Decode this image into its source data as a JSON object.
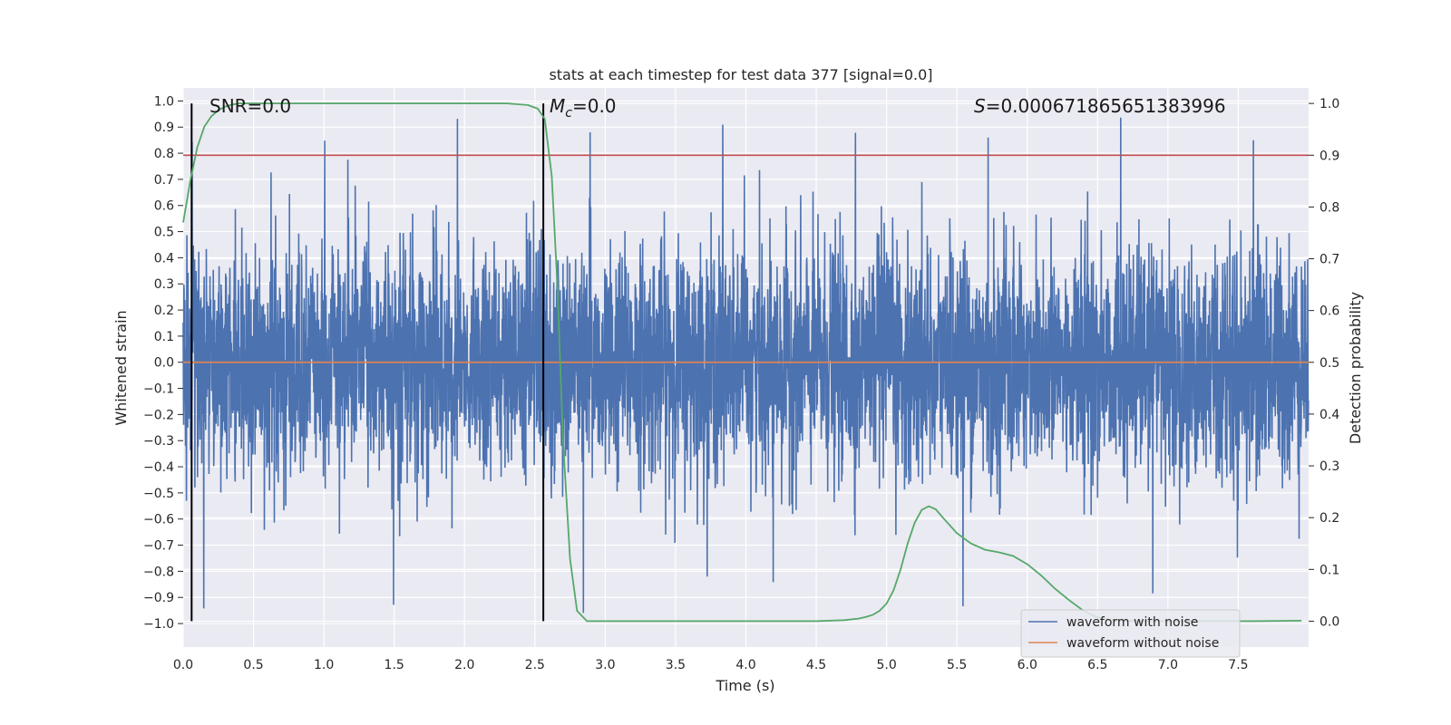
{
  "chart_data": {
    "type": "line",
    "title": "stats at each timestep for test data 377 [signal=0.0]",
    "xlabel": "Time (s)",
    "ylabel_left": "Whitened strain",
    "ylabel_right": "Detection probability",
    "xlim": [
      0.0,
      8.0
    ],
    "ylim_left": [
      -1.09,
      1.05
    ],
    "ylim_right": [
      -0.05,
      1.03
    ],
    "x_ticks": [
      "0.0",
      "0.5",
      "1.0",
      "1.5",
      "2.0",
      "2.5",
      "3.0",
      "3.5",
      "4.0",
      "4.5",
      "5.0",
      "5.5",
      "6.0",
      "6.5",
      "7.0",
      "7.5"
    ],
    "y_left_ticks": [
      "1.0",
      "0.9",
      "0.8",
      "0.7",
      "0.6",
      "0.5",
      "0.4",
      "0.3",
      "0.2",
      "0.1",
      "0.0",
      "−0.1",
      "−0.2",
      "−0.3",
      "−0.4",
      "−0.5",
      "−0.6",
      "−0.7",
      "−0.8",
      "−0.9",
      "−1.0"
    ],
    "y_right_ticks": [
      "1.0",
      "0.9",
      "0.8",
      "0.7",
      "0.6",
      "0.5",
      "0.4",
      "0.3",
      "0.2",
      "0.1",
      "0.0"
    ],
    "grid": true,
    "legend_position": "bottom-right",
    "annotations": {
      "snr": "SNR=0.0",
      "mc_symbol": "M",
      "mc_sub": "c",
      "mc_value": "=0.0",
      "s_symbol": "S",
      "s_value": "=0.000671865651383996"
    },
    "vertical_markers_s": [
      0.06,
      2.56
    ],
    "threshold_probability": 0.9,
    "series": [
      {
        "name": "waveform with noise",
        "color": "#4c72b0",
        "axis": "left",
        "description": "noisy whitened strain, roughly within ±0.8",
        "peak_max": 0.96,
        "peak_min": -1.0
      },
      {
        "name": "waveform without noise",
        "color": "#dd8452",
        "axis": "left",
        "x": [
          0.0,
          8.0
        ],
        "y": [
          0.0,
          0.0
        ]
      },
      {
        "name": "detection probability",
        "color": "#55a868",
        "axis": "right",
        "x": [
          0.0,
          0.05,
          0.1,
          0.15,
          0.2,
          0.25,
          0.3,
          0.35,
          0.4,
          0.5,
          0.7,
          1.0,
          1.5,
          2.0,
          2.3,
          2.45,
          2.52,
          2.57,
          2.62,
          2.66,
          2.7,
          2.75,
          2.8,
          2.87,
          3.0,
          3.5,
          4.0,
          4.5,
          4.7,
          4.8,
          4.85,
          4.9,
          4.95,
          5.0,
          5.05,
          5.1,
          5.15,
          5.2,
          5.25,
          5.3,
          5.35,
          5.4,
          5.5,
          5.6,
          5.7,
          5.8,
          5.9,
          6.0,
          6.1,
          6.2,
          6.3,
          6.4,
          6.5,
          6.6,
          6.8,
          7.0,
          7.3,
          7.6,
          7.95
        ],
        "y": [
          0.77,
          0.85,
          0.915,
          0.955,
          0.975,
          0.987,
          0.994,
          0.998,
          1.0,
          1.0,
          1.0,
          1.0,
          1.0,
          1.0,
          1.0,
          0.997,
          0.99,
          0.97,
          0.86,
          0.65,
          0.35,
          0.12,
          0.02,
          0.0,
          0.0,
          0.0,
          0.0,
          0.0,
          0.002,
          0.005,
          0.008,
          0.012,
          0.02,
          0.034,
          0.06,
          0.1,
          0.15,
          0.19,
          0.215,
          0.222,
          0.216,
          0.2,
          0.17,
          0.15,
          0.138,
          0.133,
          0.126,
          0.11,
          0.088,
          0.062,
          0.04,
          0.02,
          0.007,
          0.002,
          0.0,
          0.0,
          0.0,
          0.0,
          0.001
        ]
      }
    ]
  }
}
